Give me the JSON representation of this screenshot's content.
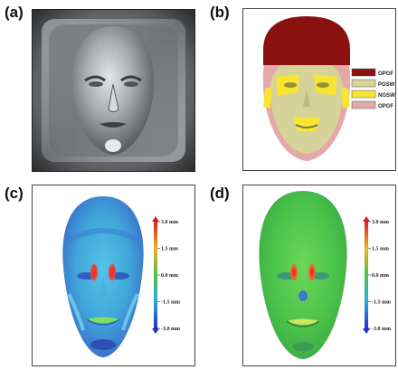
{
  "panels": {
    "a": {
      "label": "(a)"
    },
    "b": {
      "label": "(b)",
      "legend": [
        {
          "text": "OPGF",
          "color": "#8b1010"
        },
        {
          "text": "PGSW",
          "color": "#d6d39a"
        },
        {
          "text": "NGSW",
          "color": "#f7e531"
        },
        {
          "text": "OPGF",
          "color": "#e2a8aa"
        }
      ]
    },
    "c": {
      "label": "(c)",
      "colorbar": {
        "ticks": [
          "3.0 mm",
          "1.5 mm",
          "0.0 mm",
          "-1.5 mm",
          "-3.0 mm"
        ]
      }
    },
    "d": {
      "label": "(d)",
      "colorbar": {
        "ticks": [
          "3.0 mm",
          "1.5 mm",
          "0.0 mm",
          "-1.5 mm",
          "-3.0 mm"
        ]
      }
    }
  },
  "colors": {
    "mold_dark": "#3b3d40",
    "mold_light": "#c9cbcc",
    "face_c_base": "#3fa6d9",
    "face_d_base": "#4cc34a"
  }
}
